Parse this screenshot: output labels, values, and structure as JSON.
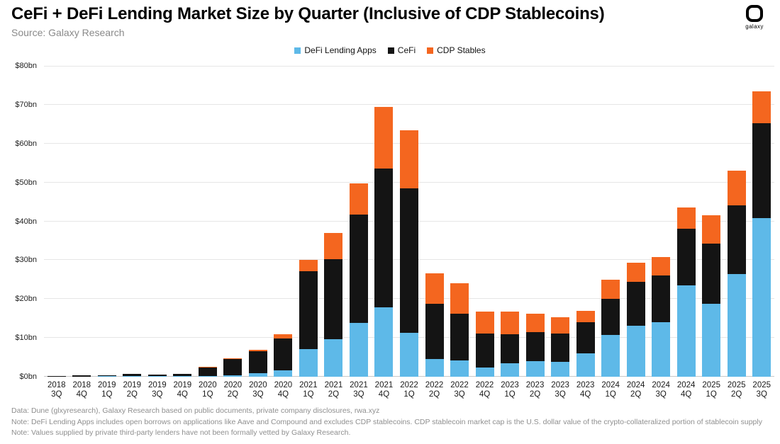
{
  "header": {
    "source": "Source: Galaxy Research",
    "logo_text": "galaxy"
  },
  "chart_data": {
    "type": "bar",
    "stacked": true,
    "title": "CeFi + DeFi Lending Market Size by Quarter (Inclusive of CDP Stablecoins)",
    "xlabel": "",
    "ylabel": "",
    "ylim": [
      0,
      80
    ],
    "ytick_step": 10,
    "ytick_labels": [
      "$0bn",
      "$10bn",
      "$20bn",
      "$30bn",
      "$40bn",
      "$50bn",
      "$60bn",
      "$70bn",
      "$80bn"
    ],
    "grid": true,
    "legend_position": "top",
    "categories": [
      "2018 3Q",
      "2018 4Q",
      "2019 1Q",
      "2019 2Q",
      "2019 3Q",
      "2019 4Q",
      "2020 1Q",
      "2020 2Q",
      "2020 3Q",
      "2020 4Q",
      "2021 1Q",
      "2021 2Q",
      "2021 3Q",
      "2021 4Q",
      "2022 1Q",
      "2022 2Q",
      "2022 3Q",
      "2022 4Q",
      "2023 1Q",
      "2023 2Q",
      "2023 3Q",
      "2023 4Q",
      "2024 1Q",
      "2024 2Q",
      "2024 3Q",
      "2024 4Q",
      "2025 1Q",
      "2025 2Q",
      "2025 3Q"
    ],
    "series": [
      {
        "key": "defi",
        "name": "DeFi Lending Apps",
        "color": "#5EB9E8",
        "values": [
          0.0,
          0.0,
          0.1,
          0.2,
          0.1,
          0.1,
          0.2,
          0.3,
          1.0,
          1.7,
          7.2,
          9.6,
          13.9,
          17.9,
          11.3,
          4.6,
          4.2,
          2.4,
          3.4,
          4.0,
          3.8,
          6.0,
          10.8,
          13.2,
          14.0,
          23.5,
          18.7,
          26.5,
          40.8
        ]
      },
      {
        "key": "cefi",
        "name": "CeFi",
        "color": "#141414",
        "values": [
          0.2,
          0.3,
          0.3,
          0.5,
          0.5,
          0.6,
          2.2,
          4.3,
          5.5,
          8.2,
          20.0,
          20.7,
          27.9,
          35.6,
          37.2,
          14.2,
          12.1,
          8.7,
          7.5,
          7.5,
          7.4,
          8.0,
          9.3,
          11.3,
          12.0,
          14.5,
          15.5,
          17.6,
          24.5
        ]
      },
      {
        "key": "cdp",
        "name": "CDP Stables",
        "color": "#F4661F",
        "values": [
          0.0,
          0.0,
          0.0,
          0.0,
          0.0,
          0.1,
          0.1,
          0.2,
          0.5,
          1.0,
          2.8,
          6.7,
          7.9,
          15.9,
          14.9,
          7.8,
          7.8,
          5.6,
          5.9,
          4.8,
          4.1,
          3.0,
          4.8,
          4.8,
          4.8,
          5.5,
          7.3,
          9.0,
          8.2
        ]
      }
    ]
  },
  "footer": {
    "line1": "Data: Dune (glxyresearch), Galaxy Research based on public documents, private company disclosures, rwa.xyz",
    "line2": "Note: DeFi Lending Apps includes open borrows on applications like Aave and Compound and excludes CDP stablecoins. CDP stablecoin market cap is the U.S. dollar value of the crypto-collateralized portion of stablecoin supply",
    "line3": "Note: Values supplied by private third-party lenders have not been formally vetted by Galaxy Research."
  }
}
